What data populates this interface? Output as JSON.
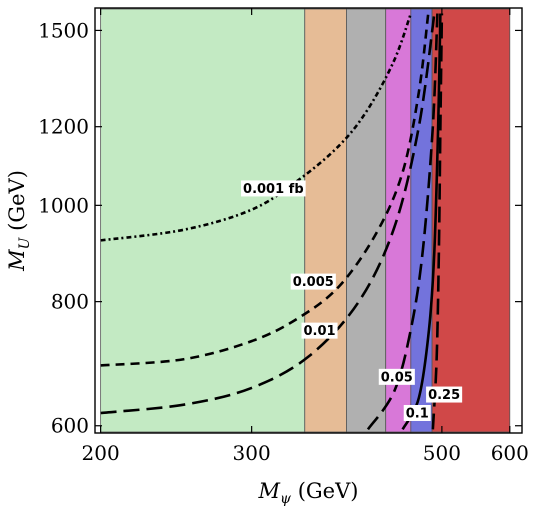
{
  "chart_data": {
    "type": "area",
    "xlabel": "M",
    "xlabel_sub": "ψ",
    "xlabel_unit": " (GeV)",
    "ylabel": "M",
    "ylabel_sub": "U",
    "ylabel_unit": " (GeV)",
    "x_scale": "log",
    "y_scale": "log",
    "xlim": [
      197,
      620
    ],
    "ylim": [
      590,
      1580
    ],
    "x_ticks": [
      {
        "value": 200,
        "label": "200"
      },
      {
        "value": 300,
        "label": "300"
      },
      {
        "value": 500,
        "label": "500"
      },
      {
        "value": 600,
        "label": "600"
      }
    ],
    "y_ticks": [
      {
        "value": 600,
        "label": "600"
      },
      {
        "value": 800,
        "label": "800"
      },
      {
        "value": 1000,
        "label": "1000"
      },
      {
        "value": 1200,
        "label": "1200"
      },
      {
        "value": 1500,
        "label": "1500"
      }
    ],
    "regions": [
      {
        "x_from": 200,
        "x_to": 346,
        "color": "#c3eac3"
      },
      {
        "x_from": 346,
        "x_to": 387,
        "color": "#e6bc96"
      },
      {
        "x_from": 387,
        "x_to": 430,
        "color": "#b0b0b0"
      },
      {
        "x_from": 430,
        "x_to": 460,
        "color": "#d878d8"
      },
      {
        "x_from": 460,
        "x_to": 487,
        "color": "#7373dc"
      },
      {
        "x_from": 487,
        "x_to": 600,
        "color": "#d04848"
      }
    ],
    "contours": [
      {
        "label": "0.001 fb",
        "dash": "dotdash",
        "points": [
          [
            200,
            922
          ],
          [
            250,
            945
          ],
          [
            300,
            990
          ],
          [
            340,
            1060
          ],
          [
            380,
            1150
          ],
          [
            410,
            1250
          ],
          [
            440,
            1400
          ],
          [
            460,
            1560
          ]
        ]
      },
      {
        "label": "0.005",
        "dash": "dash",
        "points": [
          [
            200,
            690
          ],
          [
            250,
            700
          ],
          [
            300,
            730
          ],
          [
            340,
            770
          ],
          [
            380,
            830
          ],
          [
            420,
            940
          ],
          [
            450,
            1080
          ],
          [
            470,
            1300
          ],
          [
            482,
            1560
          ]
        ]
      },
      {
        "label": "0.01",
        "dash": "longdash",
        "points": [
          [
            200,
            618
          ],
          [
            250,
            630
          ],
          [
            300,
            655
          ],
          [
            350,
            705
          ],
          [
            400,
            800
          ],
          [
            440,
            950
          ],
          [
            470,
            1200
          ],
          [
            490,
            1560
          ]
        ]
      },
      {
        "label": "0.05",
        "dash": "longdash",
        "points": [
          [
            410,
            595
          ],
          [
            440,
            650
          ],
          [
            460,
            750
          ],
          [
            475,
            900
          ],
          [
            488,
            1200
          ],
          [
            494,
            1560
          ]
        ]
      },
      {
        "label": "0.1",
        "dash": "solid",
        "points": [
          [
            450,
            595
          ],
          [
            470,
            640
          ],
          [
            483,
            750
          ],
          [
            490,
            900
          ],
          [
            495,
            1200
          ],
          [
            498,
            1560
          ]
        ]
      },
      {
        "label": "0.25",
        "dash": "longdash",
        "points": [
          [
            488,
            595
          ],
          [
            493,
            700
          ],
          [
            496,
            900
          ],
          [
            498,
            1200
          ],
          [
            500,
            1560
          ]
        ]
      }
    ],
    "contour_labels": [
      {
        "text": "0.001 fb",
        "x": 318,
        "y": 1040
      },
      {
        "text": "0.005",
        "x": 354,
        "y": 838
      },
      {
        "text": "0.01",
        "x": 360,
        "y": 748
      },
      {
        "text": "0.05",
        "x": 443,
        "y": 672
      },
      {
        "text": "0.1",
        "x": 468,
        "y": 618
      },
      {
        "text": "0.25",
        "x": 503,
        "y": 645
      }
    ]
  }
}
